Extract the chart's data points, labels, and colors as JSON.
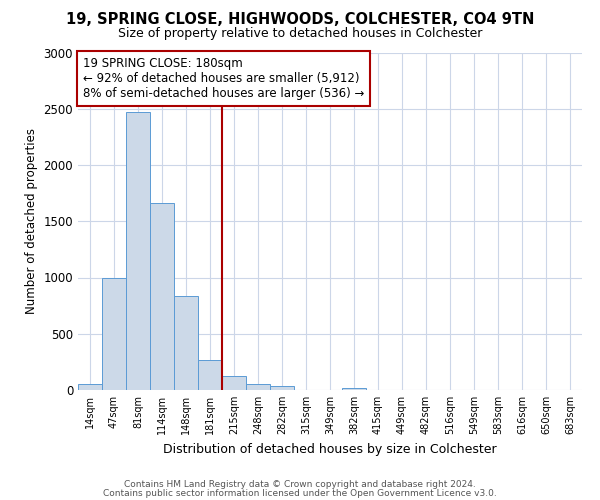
{
  "title1": "19, SPRING CLOSE, HIGHWOODS, COLCHESTER, CO4 9TN",
  "title2": "Size of property relative to detached houses in Colchester",
  "xlabel": "Distribution of detached houses by size in Colchester",
  "ylabel": "Number of detached properties",
  "bin_labels": [
    "14sqm",
    "47sqm",
    "81sqm",
    "114sqm",
    "148sqm",
    "181sqm",
    "215sqm",
    "248sqm",
    "282sqm",
    "315sqm",
    "349sqm",
    "382sqm",
    "415sqm",
    "449sqm",
    "482sqm",
    "516sqm",
    "549sqm",
    "583sqm",
    "616sqm",
    "650sqm",
    "683sqm"
  ],
  "bar_values": [
    55,
    1000,
    2470,
    1660,
    840,
    270,
    125,
    50,
    35,
    0,
    0,
    20,
    0,
    0,
    0,
    0,
    0,
    0,
    0,
    0,
    0
  ],
  "bar_color": "#ccd9e8",
  "bar_edge_color": "#5b9bd5",
  "vline_index": 5,
  "annotation_title": "19 SPRING CLOSE: 180sqm",
  "annotation_line1": "← 92% of detached houses are smaller (5,912)",
  "annotation_line2": "8% of semi-detached houses are larger (536) →",
  "annotation_box_color": "#aa0000",
  "vline_color": "#aa0000",
  "ylim": [
    0,
    3000
  ],
  "yticks": [
    0,
    500,
    1000,
    1500,
    2000,
    2500,
    3000
  ],
  "footer1": "Contains HM Land Registry data © Crown copyright and database right 2024.",
  "footer2": "Contains public sector information licensed under the Open Government Licence v3.0.",
  "bg_color": "#ffffff",
  "grid_color": "#ccd6e8"
}
